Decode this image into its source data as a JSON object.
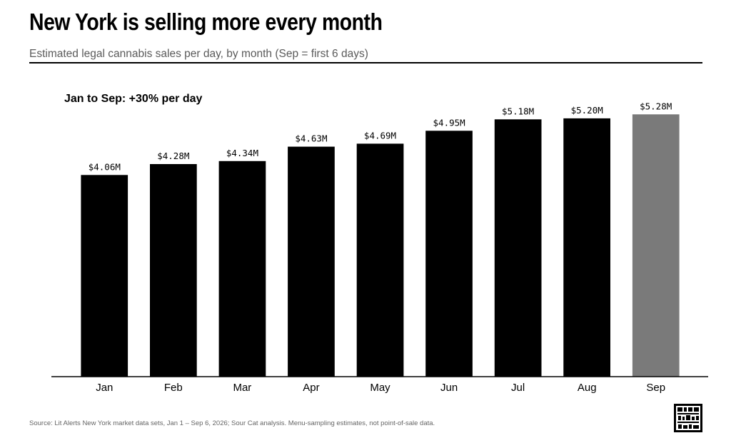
{
  "header": {
    "title": "New York is selling more every month",
    "subtitle": "Estimated legal cannabis sales per day, by month (Sep = first 6 days)"
  },
  "chart_data": {
    "type": "bar",
    "title": "New York is selling more every month",
    "subtitle": "Estimated legal cannabis sales per day, by month (Sep = first 6 days)",
    "annotation": "Jan to Sep: +30% per day",
    "categories": [
      "Jan",
      "Feb",
      "Mar",
      "Apr",
      "May",
      "Jun",
      "Jul",
      "Aug",
      "Sep"
    ],
    "values": [
      4.06,
      4.28,
      4.34,
      4.63,
      4.69,
      4.95,
      5.18,
      5.2,
      5.28
    ],
    "value_labels": [
      "$4.06M",
      "$4.28M",
      "$4.34M",
      "$4.63M",
      "$4.69M",
      "$4.95M",
      "$5.18M",
      "$5.20M",
      "$5.28M"
    ],
    "unit": "$M per day",
    "ylim": [
      0,
      5.5
    ],
    "grid": false,
    "colors": {
      "bar": "#000000",
      "highlight": "#7a7a7a",
      "highlight_category": "Sep"
    }
  },
  "footer": {
    "source": "Source: Lit Alerts New York market data sets, Jan 1 – Sep 6, 2026; Sour Cat analysis. Menu-sampling estimates, not point-of-sale data."
  },
  "logo": {
    "icon": "sour-cat-logo-icon"
  }
}
